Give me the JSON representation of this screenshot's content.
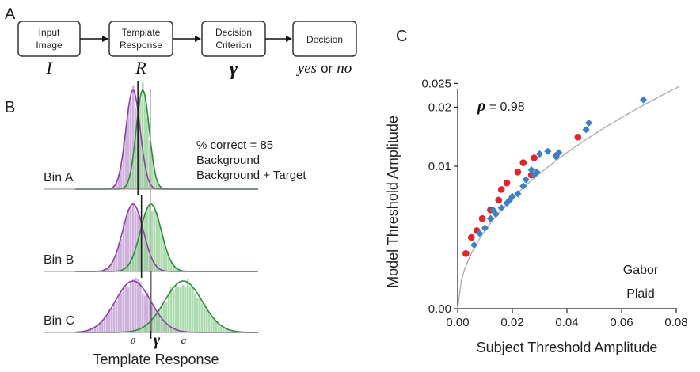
{
  "panel_labels": {
    "a": "A",
    "b": "B",
    "c": "C"
  },
  "flowchart": {
    "boxes": [
      {
        "line1": "Input",
        "line2": "Image",
        "symbol": "I"
      },
      {
        "line1": "Template",
        "line2": "Response",
        "symbol": "R"
      },
      {
        "line1": "Decision",
        "line2": "Criterion",
        "symbol": "γ"
      },
      {
        "line1": "Decision",
        "line2": "",
        "symbol_yes": "yes",
        "symbol_or": "or",
        "symbol_no": "no"
      }
    ]
  },
  "colors": {
    "background": "#8e3fa3",
    "target": "#2e8b3e",
    "background_fill": "#c8a6d6",
    "target_fill": "#98d39a",
    "gabor": "#e3242b",
    "plaid": "#3a82c4"
  },
  "chart_data": [
    {
      "type": "histogram",
      "xlabel": "Template Response",
      "x_ticks": [
        {
          "label": "0",
          "value": 0
        },
        {
          "label": "γ",
          "value": 0.55
        },
        {
          "label": "a",
          "value": 1.55
        }
      ],
      "legend": {
        "percent_correct": "% correct = 85",
        "series": [
          "Background",
          "Background + Target"
        ]
      },
      "bins": [
        {
          "label": "Bin A",
          "bg_mean": 0.0,
          "bg_sd": 0.22,
          "tgt_mean": 0.3,
          "tgt_sd": 0.2,
          "criterion": 0.15
        },
        {
          "label": "Bin B",
          "bg_mean": 0.0,
          "bg_sd": 0.32,
          "tgt_mean": 0.55,
          "tgt_sd": 0.32,
          "criterion": 0.26
        },
        {
          "label": "Bin C",
          "bg_mean": 0.0,
          "bg_sd": 0.55,
          "tgt_mean": 1.55,
          "tgt_sd": 0.58,
          "criterion": 0.55
        }
      ]
    },
    {
      "type": "scatter",
      "xlabel": "Subject Threshold Amplitude",
      "ylabel": "Model Threshold Amplitude",
      "annotation_symbol": "ρ",
      "annotation_value": " = 0.98",
      "xlim": [
        0,
        0.08
      ],
      "x_ticks": [
        "0.00",
        "0.02",
        "0.04",
        "0.06",
        "0.08"
      ],
      "y_ticks": [
        "0.00",
        "0.01",
        "0.02",
        "0.025"
      ],
      "y_scale": "sqrt",
      "series": [
        {
          "name": "Gabor",
          "marker": "circle",
          "points": [
            [
              0.003,
              0.0015
            ],
            [
              0.005,
              0.0025
            ],
            [
              0.007,
              0.003
            ],
            [
              0.009,
              0.004
            ],
            [
              0.012,
              0.0048
            ],
            [
              0.015,
              0.0058
            ],
            [
              0.016,
              0.007
            ],
            [
              0.018,
              0.0078
            ],
            [
              0.022,
              0.0092
            ],
            [
              0.024,
              0.0105
            ],
            [
              0.027,
              0.0088
            ],
            [
              0.028,
              0.0112
            ],
            [
              0.036,
              0.0115
            ],
            [
              0.044,
              0.0145
            ]
          ]
        },
        {
          "name": "Plaid",
          "marker": "diamond",
          "points": [
            [
              0.006,
              0.002
            ],
            [
              0.008,
              0.0028
            ],
            [
              0.01,
              0.0032
            ],
            [
              0.012,
              0.004
            ],
            [
              0.013,
              0.0048
            ],
            [
              0.014,
              0.0044
            ],
            [
              0.016,
              0.005
            ],
            [
              0.018,
              0.0055
            ],
            [
              0.019,
              0.0058
            ],
            [
              0.02,
              0.0062
            ],
            [
              0.022,
              0.0065
            ],
            [
              0.024,
              0.0074
            ],
            [
              0.025,
              0.0082
            ],
            [
              0.027,
              0.0095
            ],
            [
              0.028,
              0.0088
            ],
            [
              0.029,
              0.0092
            ],
            [
              0.03,
              0.0118
            ],
            [
              0.033,
              0.0122
            ],
            [
              0.036,
              0.0114
            ],
            [
              0.037,
              0.012
            ],
            [
              0.047,
              0.0158
            ],
            [
              0.048,
              0.017
            ],
            [
              0.068,
              0.0215
            ]
          ]
        }
      ]
    }
  ]
}
